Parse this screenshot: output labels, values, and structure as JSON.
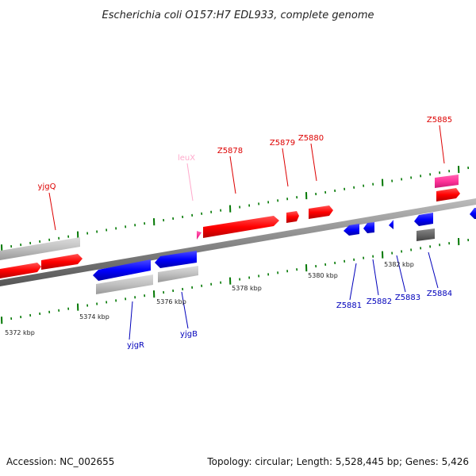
{
  "title": "Escherichia coli O157:H7 EDL933, complete genome",
  "accession": "Accession: NC_002655",
  "summary": "Topology: circular; Length: 5,528,445 bp; Genes: 5,426",
  "colors": {
    "forward_gene": "#ff0000",
    "reverse_gene": "#0000ff",
    "trna": "#ffaacc",
    "rrna_or_misc": "#ff3399",
    "cds_grey": "#c0c0c0",
    "dark_grey": "#666666",
    "backbone": "#888888",
    "tick": "#007700",
    "label_forward": "#dd0000",
    "label_reverse": "#0000bb",
    "label_trna": "#ffaacc"
  },
  "scale_labels": [
    "5372 kbp",
    "5374 kbp",
    "5376 kbp",
    "5378 kbp",
    "5380 kbp",
    "5382 kbp"
  ],
  "gene_labels": {
    "yjgQ": "yjgQ",
    "leuX": "leuX",
    "Z5878": "Z5878",
    "Z5879": "Z5879",
    "Z5880": "Z5880",
    "Z5885": "Z5885",
    "yjgR": "yjgR",
    "yjgB": "yjgB",
    "Z5881": "Z5881",
    "Z5882": "Z5882",
    "Z5883": "Z5883",
    "Z5884": "Z5884"
  }
}
